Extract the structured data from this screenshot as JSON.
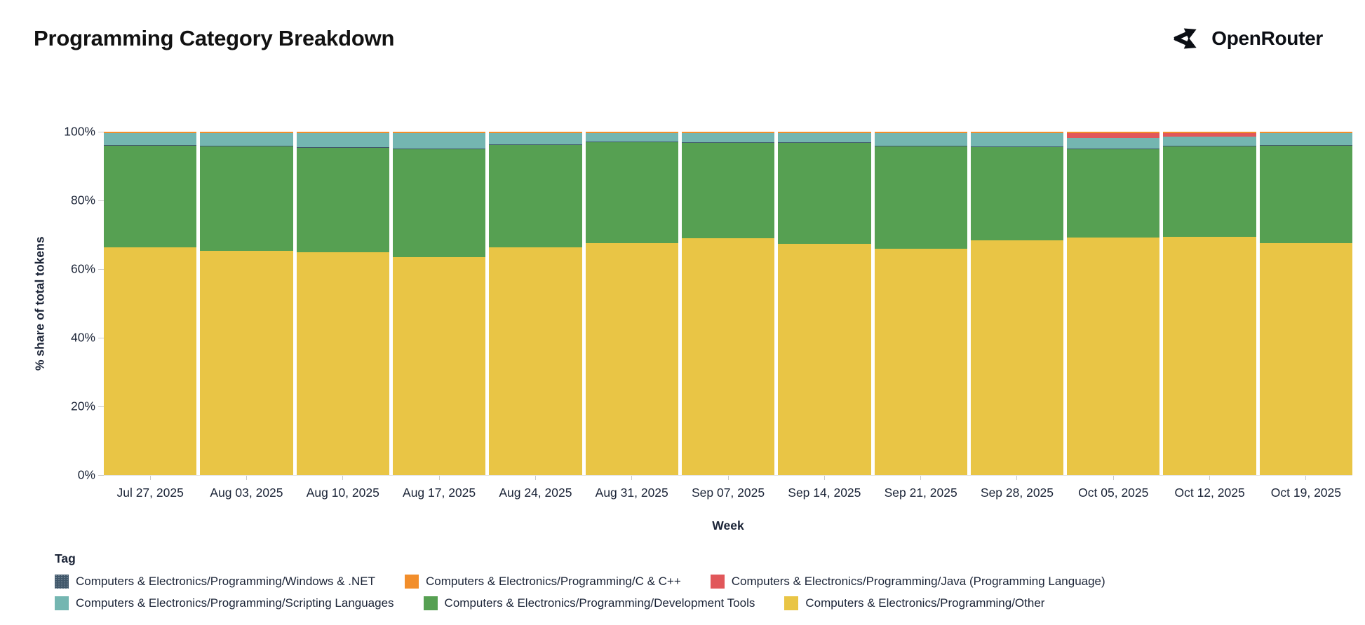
{
  "header": {
    "title": "Programming Category Breakdown",
    "brand": "OpenRouter"
  },
  "chart_data": {
    "type": "bar",
    "stacked": true,
    "normalized_percent": true,
    "title": "Programming Category Breakdown",
    "xlabel": "Week",
    "ylabel": "% share of total tokens",
    "ylim": [
      0,
      100
    ],
    "ytick_labels": [
      "0%",
      "20%",
      "40%",
      "60%",
      "80%",
      "100%"
    ],
    "grid": false,
    "legend_title": "Tag",
    "legend_position": "bottom",
    "categories": [
      "Jul 27, 2025",
      "Aug 03, 2025",
      "Aug 10, 2025",
      "Aug 17, 2025",
      "Aug 24, 2025",
      "Aug 31, 2025",
      "Sep 07, 2025",
      "Sep 14, 2025",
      "Sep 21, 2025",
      "Sep 28, 2025",
      "Oct 05, 2025",
      "Oct 12, 2025",
      "Oct 19, 2025"
    ],
    "stack_order_note": "series listed bottom-to-top, values are % share per week",
    "series": [
      {
        "name": "Computers & Electronics/Programming/Other",
        "color": "#E9C545",
        "pattern": "solid",
        "values": [
          66.3,
          65.3,
          64.9,
          63.5,
          66.4,
          67.6,
          69.0,
          67.3,
          65.9,
          68.4,
          69.2,
          69.3,
          67.6
        ]
      },
      {
        "name": "Computers & Electronics/Programming/Development Tools",
        "color": "#56A052",
        "pattern": "solid",
        "values": [
          29.6,
          30.4,
          30.5,
          31.4,
          29.8,
          29.3,
          27.7,
          29.4,
          29.8,
          27.2,
          25.8,
          26.5,
          28.4
        ]
      },
      {
        "name": "Computers & Electronics/Programming/Windows & .NET",
        "color": "#41586B",
        "pattern": "dotted",
        "values": [
          0.15,
          0.15,
          0.15,
          0.15,
          0.15,
          0.15,
          0.15,
          0.15,
          0.15,
          0.15,
          0.15,
          0.15,
          0.15
        ]
      },
      {
        "name": "Computers & Electronics/Programming/Scripting Languages",
        "color": "#74B6B1",
        "pattern": "solid",
        "values": [
          3.6,
          3.8,
          4.1,
          4.6,
          3.3,
          2.6,
          2.8,
          2.8,
          3.8,
          3.9,
          2.95,
          2.55,
          3.5
        ]
      },
      {
        "name": "Computers & Electronics/Programming/Java (Programming Language)",
        "color": "#E1575A",
        "pattern": "solid",
        "values": [
          0,
          0,
          0,
          0,
          0,
          0,
          0,
          0,
          0,
          0,
          1.6,
          1.2,
          0
        ]
      },
      {
        "name": "Computers & Electronics/Programming/C & C++",
        "color": "#F28E2B",
        "pattern": "solid",
        "values": [
          0.35,
          0.35,
          0.35,
          0.35,
          0.35,
          0.35,
          0.35,
          0.35,
          0.35,
          0.35,
          0.3,
          0.3,
          0.35
        ]
      }
    ],
    "legend_rows": [
      [
        "Computers & Electronics/Programming/Windows & .NET",
        "Computers & Electronics/Programming/C & C++",
        "Computers & Electronics/Programming/Java (Programming Language)"
      ],
      [
        "Computers & Electronics/Programming/Scripting Languages",
        "Computers & Electronics/Programming/Development Tools",
        "Computers & Electronics/Programming/Other"
      ]
    ]
  }
}
